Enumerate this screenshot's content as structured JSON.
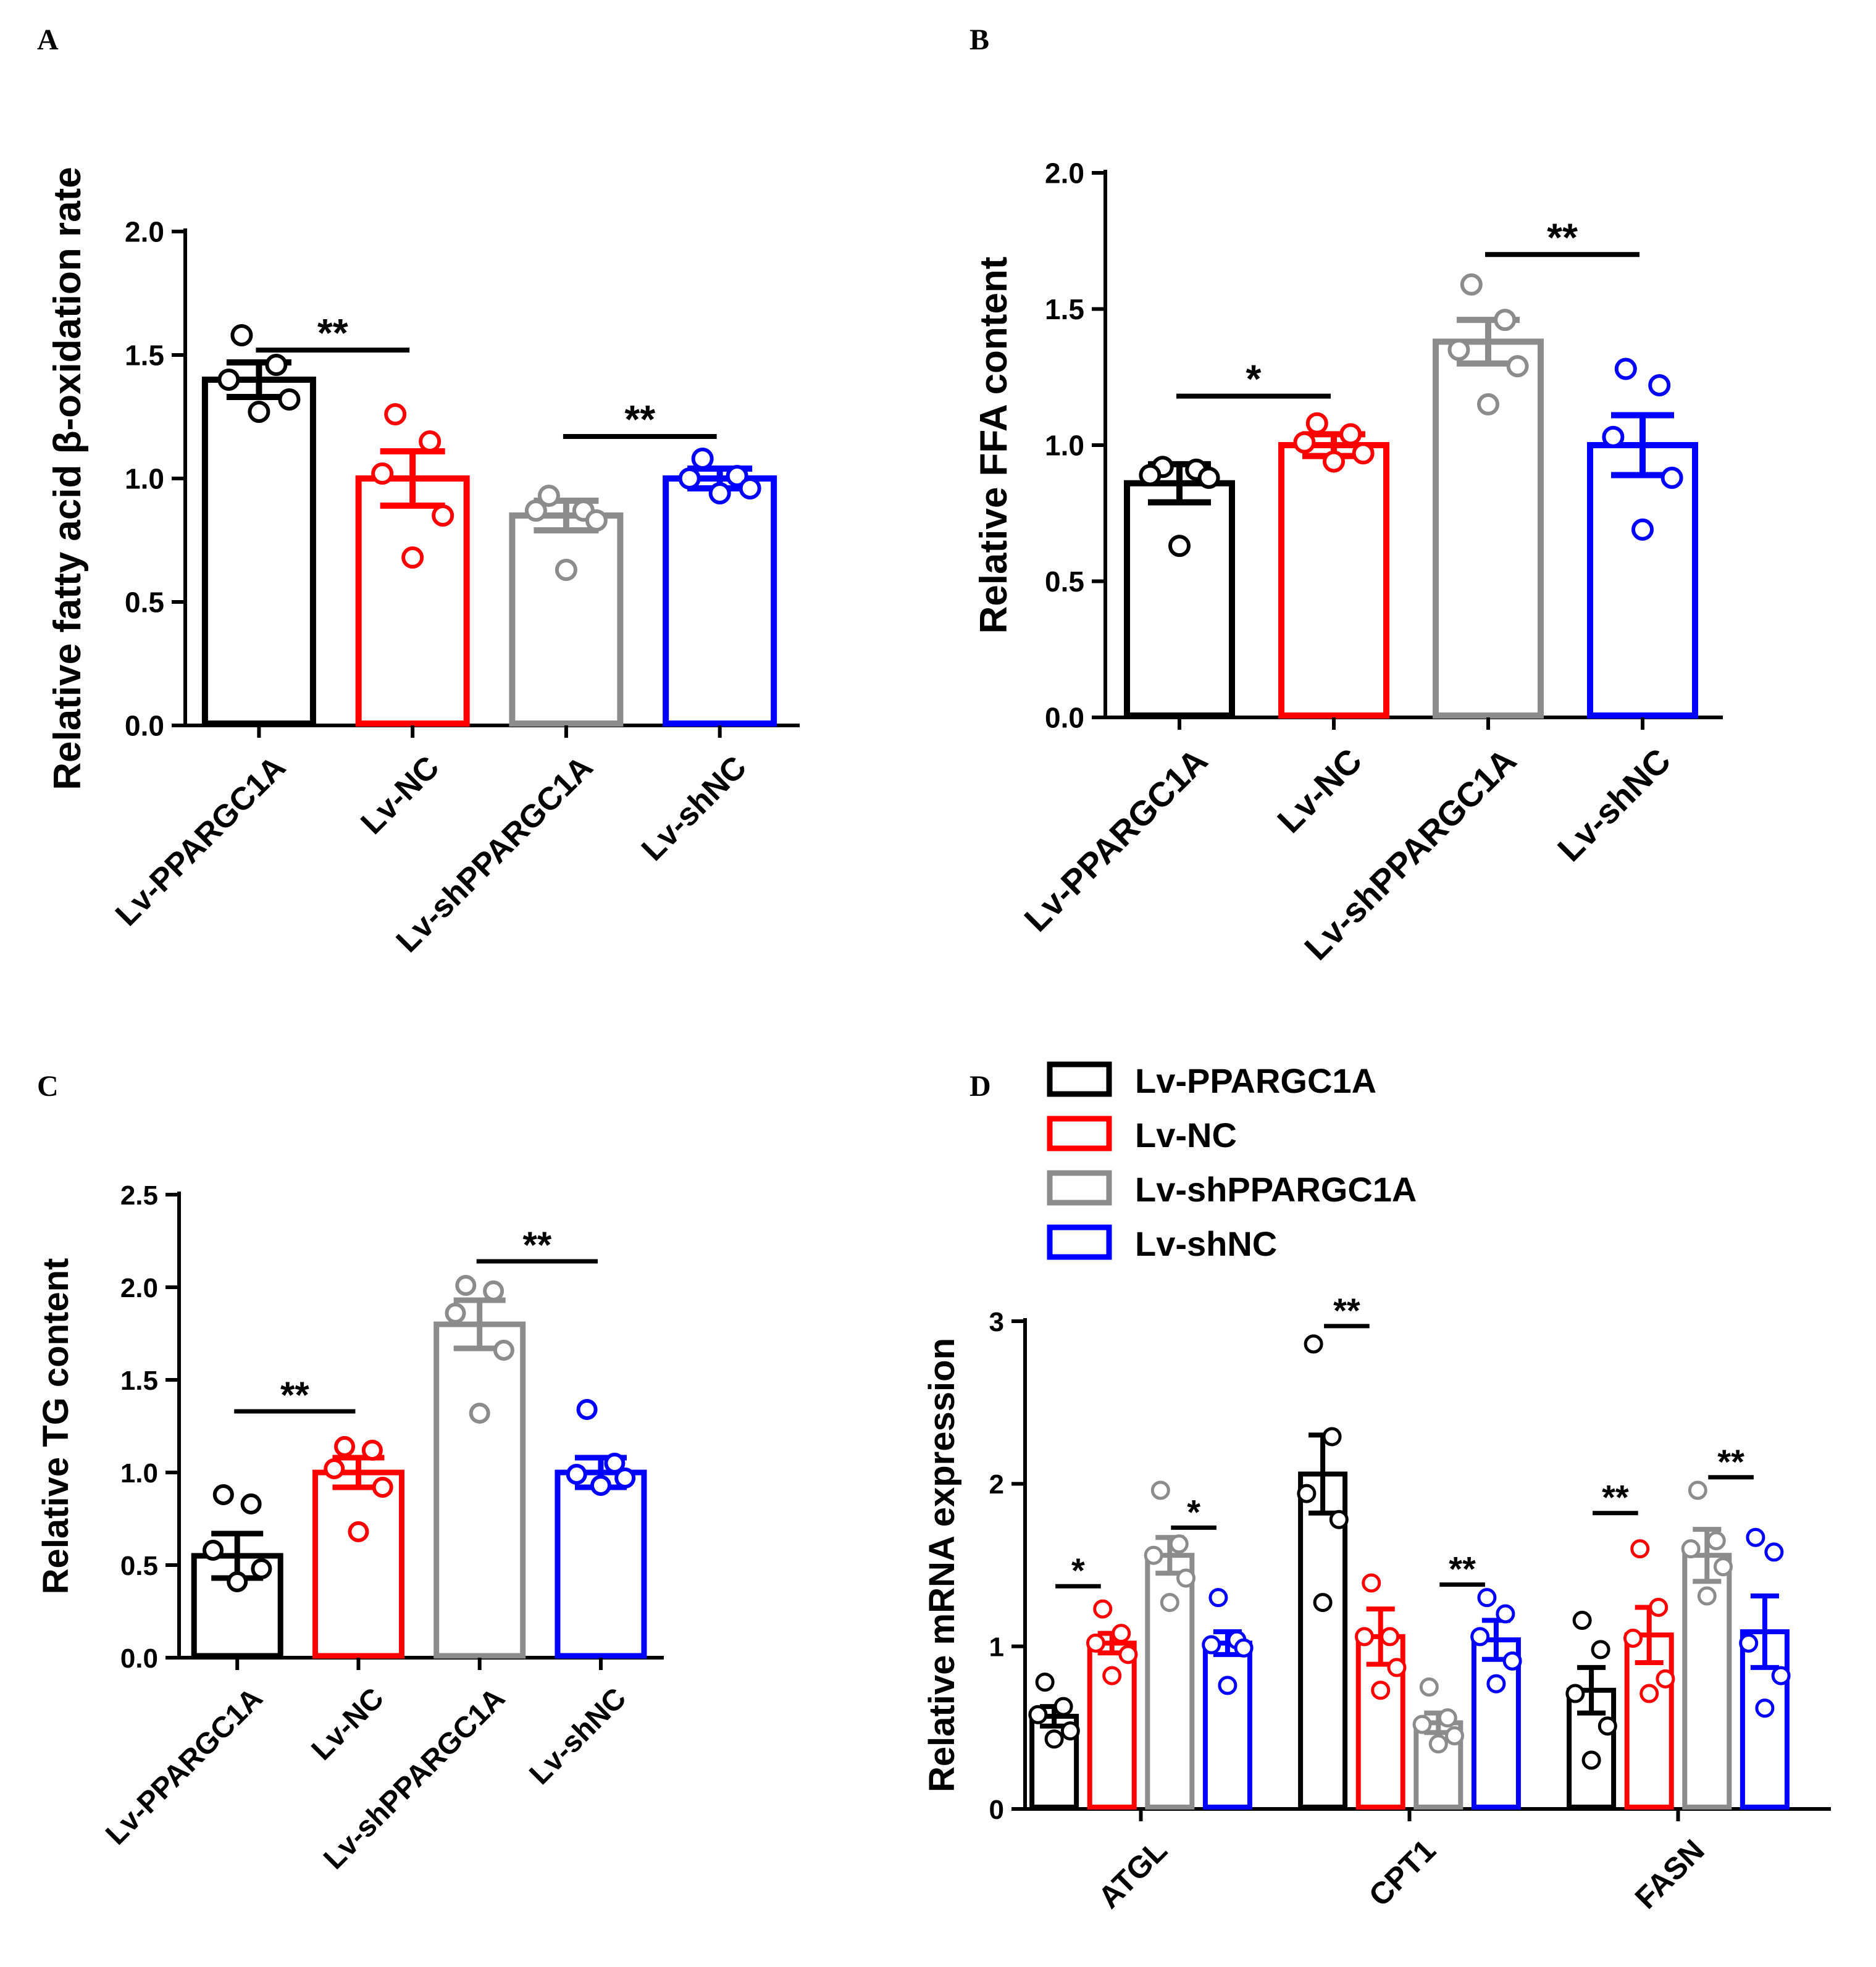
{
  "figure": {
    "groups": [
      "Lv-PPARGC1A",
      "Lv-NC",
      "Lv-shPPARGC1A",
      "Lv-shNC"
    ],
    "colors": {
      "Lv-PPARGC1A": "#000000",
      "Lv-NC": "#ff0000",
      "Lv-shPPARGC1A": "#8c8c8c",
      "Lv-shNC": "#0000ff"
    }
  },
  "chart_data": [
    {
      "panel": "A",
      "type": "bar",
      "ylabel": "Relative fatty acid β-oxidation rate",
      "ylim": [
        0,
        2.0
      ],
      "yticks": [
        0.0,
        0.5,
        1.0,
        1.5,
        2.0
      ],
      "tick_format": "0.0",
      "categories": [
        "Lv-PPARGC1A",
        "Lv-NC",
        "Lv-shPPARGC1A",
        "Lv-shNC"
      ],
      "values": [
        1.4,
        1.0,
        0.85,
        1.0
      ],
      "errors": [
        0.07,
        0.11,
        0.06,
        0.04
      ],
      "points": [
        [
          1.58,
          1.46,
          1.4,
          1.32,
          1.27
        ],
        [
          1.26,
          1.15,
          1.02,
          0.85,
          0.68
        ],
        [
          0.93,
          0.87,
          0.87,
          0.83,
          0.63
        ],
        [
          1.08,
          1.01,
          1.0,
          0.96,
          0.94
        ]
      ],
      "significance": [
        {
          "from": 0,
          "to": 1,
          "y": 1.52,
          "label": "**"
        },
        {
          "from": 2,
          "to": 3,
          "y": 1.17,
          "label": "**"
        }
      ]
    },
    {
      "panel": "B",
      "type": "bar",
      "ylabel": "Relative FFA content",
      "ylim": [
        0,
        2.0
      ],
      "yticks": [
        0.0,
        0.5,
        1.0,
        1.5,
        2.0
      ],
      "tick_format": "0.0",
      "categories": [
        "Lv-PPARGC1A",
        "Lv-NC",
        "Lv-shPPARGC1A",
        "Lv-shNC"
      ],
      "values": [
        0.86,
        1.0,
        1.38,
        1.0
      ],
      "errors": [
        0.07,
        0.04,
        0.08,
        0.11
      ],
      "points": [
        [
          0.92,
          0.91,
          0.89,
          0.88,
          0.63
        ],
        [
          1.08,
          1.04,
          1.01,
          0.97,
          0.94
        ],
        [
          1.59,
          1.46,
          1.35,
          1.29,
          1.15
        ],
        [
          1.28,
          1.22,
          1.03,
          0.88,
          0.69
        ]
      ],
      "significance": [
        {
          "from": 0,
          "to": 1,
          "y": 1.18,
          "label": "*"
        },
        {
          "from": 2,
          "to": 3,
          "y": 1.7,
          "label": "**"
        }
      ]
    },
    {
      "panel": "C",
      "type": "bar",
      "ylabel": "Relative TG content",
      "ylim": [
        0,
        2.5
      ],
      "yticks": [
        0.0,
        0.5,
        1.0,
        1.5,
        2.0,
        2.5
      ],
      "tick_format": "0.0",
      "categories": [
        "Lv-PPARGC1A",
        "Lv-NC",
        "Lv-shPPARGC1A",
        "Lv-shNC"
      ],
      "values": [
        0.55,
        1.0,
        1.8,
        1.0
      ],
      "errors": [
        0.12,
        0.08,
        0.13,
        0.08
      ],
      "points": [
        [
          0.88,
          0.83,
          0.58,
          0.48,
          0.41
        ],
        [
          1.14,
          1.12,
          1.02,
          0.92,
          0.68
        ],
        [
          2.01,
          1.98,
          1.86,
          1.66,
          1.32
        ],
        [
          1.34,
          1.05,
          0.99,
          0.97,
          0.93
        ]
      ],
      "significance": [
        {
          "from": 0,
          "to": 1,
          "y": 1.33,
          "label": "**"
        },
        {
          "from": 2,
          "to": 3,
          "y": 2.14,
          "label": "**"
        }
      ]
    },
    {
      "panel": "D",
      "type": "bar",
      "ylabel": "Relative mRNA expression",
      "ylim": [
        0,
        3
      ],
      "yticks": [
        0,
        1,
        2,
        3
      ],
      "tick_format": "0",
      "categories": [
        "ATGL",
        "CPT1",
        "FASN"
      ],
      "legend": {
        "position": "top",
        "entries": [
          "Lv-PPARGC1A",
          "Lv-NC",
          "Lv-shPPARGC1A",
          "Lv-shNC"
        ]
      },
      "series": [
        {
          "name": "Lv-PPARGC1A",
          "values": [
            0.57,
            2.06,
            0.73
          ],
          "errors": [
            0.06,
            0.24,
            0.14
          ],
          "points": [
            [
              0.78,
              0.63,
              0.58,
              0.48,
              0.43
            ],
            [
              2.86,
              2.29,
              1.94,
              1.78,
              1.27
            ],
            [
              1.16,
              0.98,
              0.71,
              0.51,
              0.3
            ]
          ]
        },
        {
          "name": "Lv-NC",
          "values": [
            1.02,
            1.06,
            1.07
          ],
          "errors": [
            0.06,
            0.17,
            0.17
          ],
          "points": [
            [
              1.23,
              1.08,
              1.02,
              0.95,
              0.82
            ],
            [
              1.39,
              1.06,
              1.06,
              0.87,
              0.73
            ],
            [
              1.6,
              1.24,
              1.05,
              0.8,
              0.71
            ]
          ]
        },
        {
          "name": "Lv-shPPARGC1A",
          "values": [
            1.56,
            0.53,
            1.56
          ],
          "errors": [
            0.11,
            0.06,
            0.16
          ],
          "points": [
            [
              1.96,
              1.63,
              1.56,
              1.42,
              1.27
            ],
            [
              0.75,
              0.56,
              0.52,
              0.45,
              0.4
            ],
            [
              1.96,
              1.65,
              1.6,
              1.49,
              1.31
            ]
          ]
        },
        {
          "name": "Lv-shNC",
          "values": [
            1.02,
            1.04,
            1.09
          ],
          "errors": [
            0.07,
            0.12,
            0.22
          ],
          "points": [
            [
              1.3,
              1.04,
              1.01,
              0.99,
              0.76
            ],
            [
              1.3,
              1.2,
              1.06,
              0.91,
              0.77
            ],
            [
              1.67,
              1.58,
              1.02,
              0.82,
              0.62
            ]
          ]
        }
      ],
      "significance": [
        {
          "category": 0,
          "from": 0,
          "to": 1,
          "y": 1.37,
          "label": "*"
        },
        {
          "category": 0,
          "from": 2,
          "to": 3,
          "y": 1.73,
          "label": "*"
        },
        {
          "category": 1,
          "from": 0,
          "to": 1,
          "y": 2.97,
          "label": "**"
        },
        {
          "category": 1,
          "from": 2,
          "to": 3,
          "y": 1.38,
          "label": "**"
        },
        {
          "category": 2,
          "from": 0,
          "to": 1,
          "y": 1.82,
          "label": "**"
        },
        {
          "category": 2,
          "from": 2,
          "to": 3,
          "y": 2.04,
          "label": "**"
        }
      ]
    }
  ]
}
